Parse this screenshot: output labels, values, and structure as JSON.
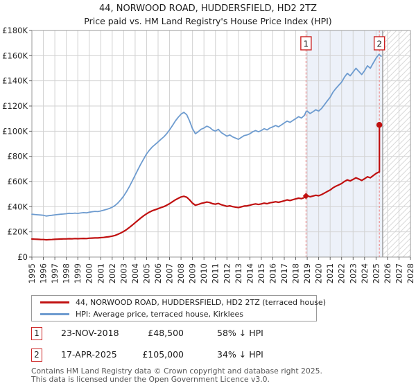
{
  "title": "44, NORWOOD ROAD, HUDDERSFIELD, HD2 2TZ",
  "subtitle": "Price paid vs. HM Land Registry's House Price Index (HPI)",
  "footer": {
    "line1": "Contains HM Land Registry data © Crown copyright and database right 2025.",
    "line2": "This data is licensed under the Open Government Licence v3.0."
  },
  "chart_data": {
    "type": "line",
    "unit": "GBP thousands",
    "ylim": [
      0,
      180
    ],
    "xlim": [
      1995,
      2028
    ],
    "grid": true,
    "legend_position": "bottom",
    "y_ticks": [
      "£0",
      "£20K",
      "£40K",
      "£60K",
      "£80K",
      "£100K",
      "£120K",
      "£140K",
      "£160K",
      "£180K"
    ],
    "x_ticks": [
      "1995",
      "1996",
      "1997",
      "1998",
      "1999",
      "2000",
      "2001",
      "2002",
      "2003",
      "2004",
      "2005",
      "2006",
      "2007",
      "2008",
      "2009",
      "2010",
      "2011",
      "2012",
      "2013",
      "2014",
      "2015",
      "2016",
      "2017",
      "2018",
      "2019",
      "2020",
      "2021",
      "2022",
      "2023",
      "2024",
      "2025",
      "2026",
      "2027",
      "2028"
    ],
    "colors": {
      "property": "#c01010",
      "hpi": "#6d9bcf",
      "shade": "#edf1f9",
      "hatch_line": "#d9d9d9",
      "grid": "#d2d2d2",
      "sale_dash": "#ee8585",
      "axis_border": "#999999",
      "future_divider": "#8a8a8a",
      "marker_box_border": "#cc2222"
    },
    "highlight_region": {
      "start": 2018.896,
      "end": 2025.58
    },
    "hatched_region": {
      "start": 2025.58,
      "end": 2028
    },
    "sales": [
      {
        "label": "1",
        "date": "23-NOV-2018",
        "year": 2018.896,
        "price_label": "£48,500",
        "value_k": 48.5,
        "pct_vs_hpi": "58% ↓ HPI",
        "marker": "diamond"
      },
      {
        "label": "2",
        "date": "17-APR-2025",
        "year": 2025.29,
        "price_label": "£105,000",
        "value_k": 105.0,
        "pct_vs_hpi": "34% ↓ HPI",
        "marker": "circle"
      }
    ],
    "series": [
      {
        "name": "44, NORWOOD ROAD, HUDDERSFIELD, HD2 2TZ (terraced house)",
        "color": "#c01010",
        "points": [
          [
            1995.0,
            14.3
          ],
          [
            1995.25,
            14.2
          ],
          [
            1995.5,
            14.1
          ],
          [
            1995.75,
            14.0
          ],
          [
            1996.0,
            13.9
          ],
          [
            1996.25,
            13.7
          ],
          [
            1996.5,
            13.8
          ],
          [
            1996.75,
            13.9
          ],
          [
            1997.0,
            14.1
          ],
          [
            1997.25,
            14.2
          ],
          [
            1997.5,
            14.3
          ],
          [
            1997.75,
            14.4
          ],
          [
            1998.0,
            14.4
          ],
          [
            1998.25,
            14.6
          ],
          [
            1998.5,
            14.5
          ],
          [
            1998.75,
            14.7
          ],
          [
            1999.0,
            14.6
          ],
          [
            1999.25,
            14.7
          ],
          [
            1999.5,
            14.8
          ],
          [
            1999.75,
            14.7
          ],
          [
            2000.0,
            15.0
          ],
          [
            2000.25,
            15.1
          ],
          [
            2000.5,
            15.2
          ],
          [
            2000.75,
            15.2
          ],
          [
            2001.0,
            15.4
          ],
          [
            2001.25,
            15.6
          ],
          [
            2001.5,
            15.9
          ],
          [
            2001.75,
            16.2
          ],
          [
            2002.0,
            16.6
          ],
          [
            2002.25,
            17.2
          ],
          [
            2002.5,
            18.1
          ],
          [
            2002.75,
            19.1
          ],
          [
            2003.0,
            20.4
          ],
          [
            2003.25,
            21.8
          ],
          [
            2003.5,
            23.5
          ],
          [
            2003.75,
            25.4
          ],
          [
            2004.0,
            27.3
          ],
          [
            2004.25,
            29.2
          ],
          [
            2004.5,
            31.1
          ],
          [
            2004.75,
            32.8
          ],
          [
            2005.0,
            34.4
          ],
          [
            2005.25,
            35.7
          ],
          [
            2005.5,
            36.8
          ],
          [
            2005.75,
            37.6
          ],
          [
            2006.0,
            38.4
          ],
          [
            2006.25,
            39.3
          ],
          [
            2006.5,
            40.1
          ],
          [
            2006.75,
            41.2
          ],
          [
            2007.0,
            42.4
          ],
          [
            2007.25,
            43.9
          ],
          [
            2007.5,
            45.4
          ],
          [
            2007.75,
            46.6
          ],
          [
            2008.0,
            47.7
          ],
          [
            2008.25,
            48.3
          ],
          [
            2008.5,
            47.5
          ],
          [
            2008.75,
            45.4
          ],
          [
            2009.0,
            42.8
          ],
          [
            2009.25,
            41.2
          ],
          [
            2009.5,
            41.8
          ],
          [
            2009.75,
            42.6
          ],
          [
            2010.0,
            43.1
          ],
          [
            2010.25,
            43.7
          ],
          [
            2010.5,
            43.3
          ],
          [
            2010.75,
            42.4
          ],
          [
            2011.0,
            42.0
          ],
          [
            2011.25,
            42.6
          ],
          [
            2011.5,
            41.6
          ],
          [
            2011.75,
            41.0
          ],
          [
            2012.0,
            40.3
          ],
          [
            2012.25,
            40.7
          ],
          [
            2012.5,
            40.1
          ],
          [
            2012.75,
            39.7
          ],
          [
            2013.0,
            39.3
          ],
          [
            2013.25,
            39.9
          ],
          [
            2013.5,
            40.5
          ],
          [
            2013.75,
            40.7
          ],
          [
            2014.0,
            41.2
          ],
          [
            2014.25,
            41.8
          ],
          [
            2014.5,
            42.2
          ],
          [
            2014.75,
            41.8
          ],
          [
            2015.0,
            42.2
          ],
          [
            2015.25,
            42.8
          ],
          [
            2015.5,
            42.4
          ],
          [
            2015.75,
            43.1
          ],
          [
            2016.0,
            43.5
          ],
          [
            2016.25,
            43.9
          ],
          [
            2016.5,
            43.5
          ],
          [
            2016.75,
            44.1
          ],
          [
            2017.0,
            44.7
          ],
          [
            2017.25,
            45.4
          ],
          [
            2017.5,
            44.9
          ],
          [
            2017.75,
            45.6
          ],
          [
            2018.0,
            46.2
          ],
          [
            2018.25,
            46.8
          ],
          [
            2018.5,
            46.4
          ],
          [
            2018.75,
            47.3
          ],
          [
            2018.896,
            48.5
          ],
          [
            2019.0,
            48.7
          ],
          [
            2019.25,
            47.9
          ],
          [
            2019.5,
            48.5
          ],
          [
            2019.75,
            49.1
          ],
          [
            2020.0,
            48.7
          ],
          [
            2020.25,
            49.6
          ],
          [
            2020.5,
            50.8
          ],
          [
            2020.75,
            52.1
          ],
          [
            2021.0,
            53.3
          ],
          [
            2021.25,
            55.0
          ],
          [
            2021.5,
            56.3
          ],
          [
            2021.75,
            57.3
          ],
          [
            2022.0,
            58.4
          ],
          [
            2022.25,
            60.1
          ],
          [
            2022.5,
            61.3
          ],
          [
            2022.75,
            60.5
          ],
          [
            2023.0,
            61.7
          ],
          [
            2023.25,
            63.0
          ],
          [
            2023.5,
            62.0
          ],
          [
            2023.75,
            60.9
          ],
          [
            2024.0,
            62.2
          ],
          [
            2024.25,
            63.8
          ],
          [
            2024.5,
            63.0
          ],
          [
            2024.75,
            64.7
          ],
          [
            2025.0,
            66.4
          ],
          [
            2025.25,
            67.6
          ],
          [
            2025.29,
            67.6
          ],
          [
            2025.29,
            105.0
          ],
          [
            2025.45,
            105.0
          ]
        ]
      },
      {
        "name": "HPI: Average price, terraced house, Kirklees",
        "color": "#6d9bcf",
        "points": [
          [
            1995.0,
            34.0
          ],
          [
            1995.25,
            33.8
          ],
          [
            1995.5,
            33.6
          ],
          [
            1995.75,
            33.4
          ],
          [
            1996.0,
            33.2
          ],
          [
            1996.25,
            32.6
          ],
          [
            1996.5,
            32.9
          ],
          [
            1996.75,
            33.2
          ],
          [
            1997.0,
            33.5
          ],
          [
            1997.25,
            33.8
          ],
          [
            1997.5,
            34.0
          ],
          [
            1997.75,
            34.2
          ],
          [
            1998.0,
            34.4
          ],
          [
            1998.25,
            34.8
          ],
          [
            1998.5,
            34.6
          ],
          [
            1998.75,
            34.9
          ],
          [
            1999.0,
            34.7
          ],
          [
            1999.25,
            35.0
          ],
          [
            1999.5,
            35.3
          ],
          [
            1999.75,
            35.1
          ],
          [
            2000.0,
            35.6
          ],
          [
            2000.25,
            36.0
          ],
          [
            2000.5,
            36.3
          ],
          [
            2000.75,
            36.1
          ],
          [
            2001.0,
            36.6
          ],
          [
            2001.25,
            37.2
          ],
          [
            2001.5,
            37.8
          ],
          [
            2001.75,
            38.6
          ],
          [
            2002.0,
            39.6
          ],
          [
            2002.25,
            41.0
          ],
          [
            2002.5,
            43.0
          ],
          [
            2002.75,
            45.5
          ],
          [
            2003.0,
            48.5
          ],
          [
            2003.25,
            52.0
          ],
          [
            2003.5,
            56.0
          ],
          [
            2003.75,
            60.5
          ],
          [
            2004.0,
            65.0
          ],
          [
            2004.25,
            69.5
          ],
          [
            2004.5,
            74.0
          ],
          [
            2004.75,
            78.0
          ],
          [
            2005.0,
            82.0
          ],
          [
            2005.25,
            85.0
          ],
          [
            2005.5,
            87.5
          ],
          [
            2005.75,
            89.5
          ],
          [
            2006.0,
            91.5
          ],
          [
            2006.25,
            93.5
          ],
          [
            2006.5,
            95.5
          ],
          [
            2006.75,
            98.0
          ],
          [
            2007.0,
            101.0
          ],
          [
            2007.25,
            104.5
          ],
          [
            2007.5,
            108.0
          ],
          [
            2007.75,
            111.0
          ],
          [
            2008.0,
            113.5
          ],
          [
            2008.25,
            115.0
          ],
          [
            2008.5,
            113.0
          ],
          [
            2008.75,
            108.0
          ],
          [
            2009.0,
            102.0
          ],
          [
            2009.25,
            98.0
          ],
          [
            2009.5,
            99.5
          ],
          [
            2009.75,
            101.5
          ],
          [
            2010.0,
            102.5
          ],
          [
            2010.25,
            104.0
          ],
          [
            2010.5,
            103.0
          ],
          [
            2010.75,
            101.0
          ],
          [
            2011.0,
            100.0
          ],
          [
            2011.25,
            101.5
          ],
          [
            2011.5,
            99.0
          ],
          [
            2011.75,
            97.5
          ],
          [
            2012.0,
            96.0
          ],
          [
            2012.25,
            97.0
          ],
          [
            2012.5,
            95.5
          ],
          [
            2012.75,
            94.5
          ],
          [
            2013.0,
            93.5
          ],
          [
            2013.25,
            95.0
          ],
          [
            2013.5,
            96.5
          ],
          [
            2013.75,
            97.0
          ],
          [
            2014.0,
            98.0
          ],
          [
            2014.25,
            99.5
          ],
          [
            2014.5,
            100.5
          ],
          [
            2014.75,
            99.5
          ],
          [
            2015.0,
            100.5
          ],
          [
            2015.25,
            102.0
          ],
          [
            2015.5,
            101.0
          ],
          [
            2015.75,
            102.5
          ],
          [
            2016.0,
            103.5
          ],
          [
            2016.25,
            104.5
          ],
          [
            2016.5,
            103.5
          ],
          [
            2016.75,
            105.0
          ],
          [
            2017.0,
            106.5
          ],
          [
            2017.25,
            108.0
          ],
          [
            2017.5,
            107.0
          ],
          [
            2017.75,
            108.5
          ],
          [
            2018.0,
            110.0
          ],
          [
            2018.25,
            111.5
          ],
          [
            2018.5,
            110.5
          ],
          [
            2018.75,
            112.5
          ],
          [
            2018.896,
            115.5
          ],
          [
            2019.0,
            116.0
          ],
          [
            2019.25,
            114.0
          ],
          [
            2019.5,
            115.5
          ],
          [
            2019.75,
            117.0
          ],
          [
            2020.0,
            116.0
          ],
          [
            2020.25,
            118.0
          ],
          [
            2020.5,
            121.0
          ],
          [
            2020.75,
            124.0
          ],
          [
            2021.0,
            127.0
          ],
          [
            2021.25,
            131.0
          ],
          [
            2021.5,
            134.0
          ],
          [
            2021.75,
            136.5
          ],
          [
            2022.0,
            139.0
          ],
          [
            2022.25,
            143.0
          ],
          [
            2022.5,
            146.0
          ],
          [
            2022.75,
            144.0
          ],
          [
            2023.0,
            147.0
          ],
          [
            2023.25,
            150.0
          ],
          [
            2023.5,
            147.5
          ],
          [
            2023.75,
            145.0
          ],
          [
            2024.0,
            148.0
          ],
          [
            2024.25,
            152.0
          ],
          [
            2024.5,
            150.0
          ],
          [
            2024.75,
            154.0
          ],
          [
            2025.0,
            158.0
          ],
          [
            2025.25,
            161.0
          ],
          [
            2025.45,
            159.5
          ]
        ]
      }
    ]
  }
}
